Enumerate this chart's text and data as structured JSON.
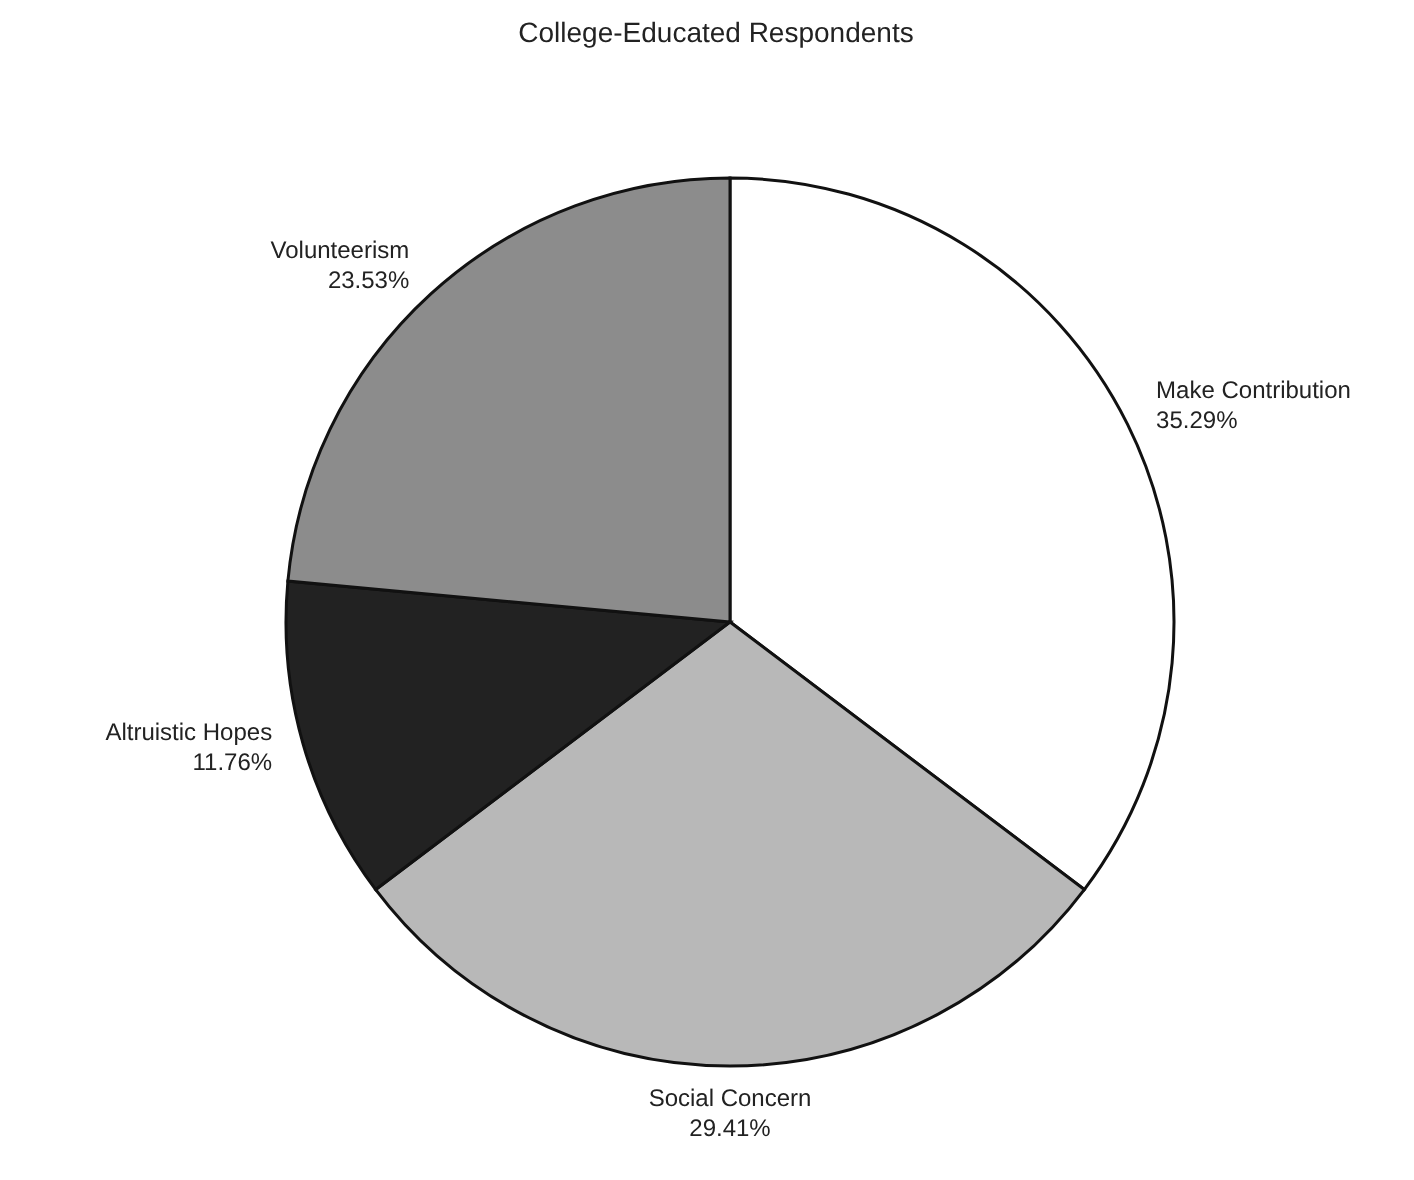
{
  "chart_data": {
    "type": "pie",
    "title": "College-Educated Respondents",
    "categories": [
      "Make Contribution",
      "Social Concern",
      "Altruistic Hopes",
      "Volunteerism"
    ],
    "values": [
      35.29,
      29.41,
      11.76,
      23.53
    ],
    "colors": [
      "#ffffff",
      "#b8b8b8",
      "#222222",
      "#8c8c8c"
    ],
    "value_labels": [
      "35.29%",
      "29.41%",
      "11.76%",
      "23.53%"
    ],
    "legend": false
  }
}
